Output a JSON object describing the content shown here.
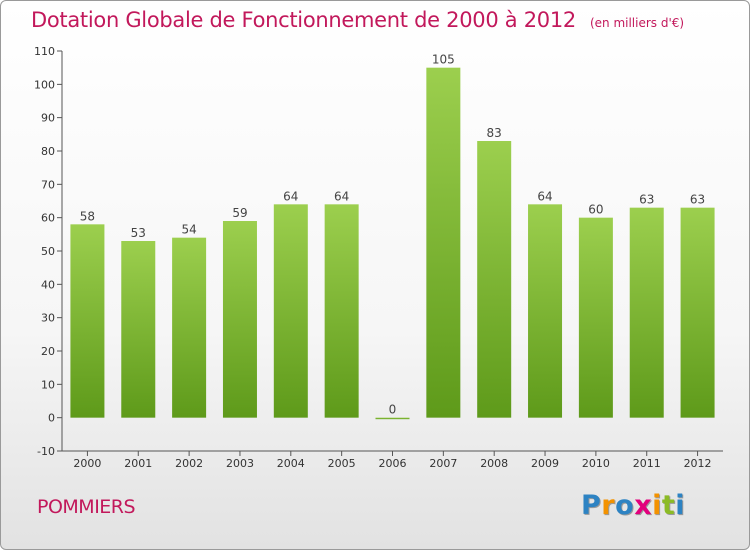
{
  "header": {
    "title": "Dotation Globale de Fonctionnement de 2000 à 2012",
    "subtitle": "(en milliers d'€)"
  },
  "footer": {
    "commune": "POMMIERS",
    "logo": [
      "P",
      "r",
      "o",
      "x",
      "i",
      "t",
      "i"
    ],
    "logo_colors": [
      "#2d83c3",
      "#f39200",
      "#2d83c3",
      "#e3007d",
      "#f39200",
      "#8cbb26",
      "#2d83c3"
    ]
  },
  "chart_data": {
    "type": "bar",
    "categories": [
      "2000",
      "2001",
      "2002",
      "2003",
      "2004",
      "2005",
      "2006",
      "2007",
      "2008",
      "2009",
      "2010",
      "2011",
      "2012"
    ],
    "values": [
      58,
      53,
      54,
      59,
      64,
      64,
      0,
      105,
      83,
      64,
      60,
      63,
      63
    ],
    "title": "Dotation Globale de Fonctionnement de 2000 à 2012",
    "ylim": [
      -10,
      110
    ],
    "yticks": [
      -10,
      0,
      10,
      20,
      30,
      40,
      50,
      60,
      70,
      80,
      90,
      100,
      110
    ],
    "grid": false,
    "bar_color_top": "#9ccf4e",
    "bar_color_bottom": "#5e9a1a"
  }
}
